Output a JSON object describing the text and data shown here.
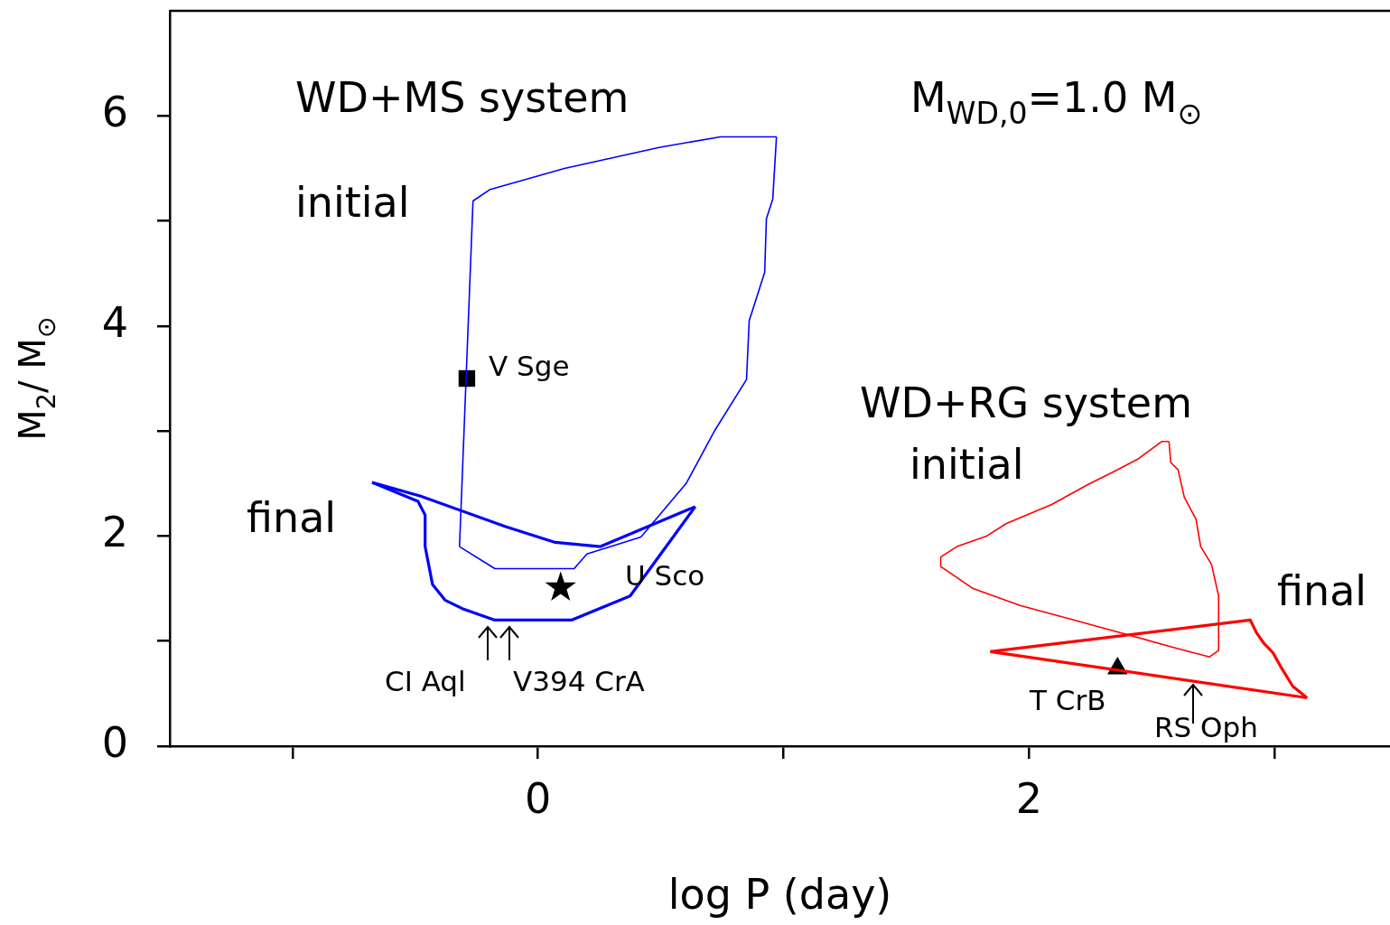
{
  "chart_data": {
    "type": "line",
    "xlabel": "log P (day)",
    "ylabel": "M$_{2}$/ M$_{⊙}$",
    "xlim": [
      -1.5,
      3.47
    ],
    "ylim": [
      0,
      7
    ],
    "xticks": [
      {
        "value": -1,
        "label": null
      },
      0,
      {
        "value": 1,
        "label": null
      },
      2,
      {
        "value": 3,
        "label": null
      }
    ],
    "yticks": [
      0,
      {
        "value": 1,
        "label": null
      },
      2,
      {
        "value": 3,
        "label": null
      },
      4,
      {
        "value": 5,
        "label": null
      },
      6
    ],
    "grid": false,
    "legend": false,
    "marker": "none",
    "line_style": "solid",
    "series": [
      {
        "color": "#0000ff",
        "x": [
          -0.32,
          -0.309,
          -0.265,
          -0.195,
          0.107,
          0.493,
          0.743,
          0.971
        ],
        "values": [
          1.9,
          2.55,
          5.19,
          5.3,
          5.5,
          5.7,
          5.8,
          5.8
        ]
      },
      {
        "color": "#0000ff",
        "x": [
          -0.32,
          -0.176,
          0.147,
          0.199,
          0.419,
          0.603,
          0.721,
          0.849,
          0.86,
          0.923,
          0.93,
          0.956,
          0.971
        ],
        "values": [
          1.9,
          1.69,
          1.69,
          1.83,
          1.99,
          2.5,
          3.01,
          3.49,
          4.05,
          4.51,
          5.02,
          5.21,
          5.8
        ]
      },
      {
        "color": "#0000ff",
        "x": [
          -0.676,
          -0.478,
          -0.132,
          0.07,
          0.254,
          0.64
        ],
        "values": [
          2.51,
          2.38,
          2.09,
          1.94,
          1.9,
          2.28
        ]
      },
      {
        "color": "#0000ff",
        "x": [
          -0.676,
          -0.489,
          -0.46,
          -0.46,
          -0.43,
          -0.379,
          -0.309,
          -0.176,
          0.136,
          0.375,
          0.64
        ],
        "values": [
          2.51,
          2.33,
          2.2,
          1.9,
          1.54,
          1.39,
          1.31,
          1.2,
          1.2,
          1.43,
          2.28
        ]
      },
      {
        "color": "#ff0000",
        "x": [
          1.64,
          1.706,
          1.827,
          1.908,
          2.092,
          2.239,
          2.342,
          2.441,
          2.54,
          2.57
        ],
        "values": [
          1.8,
          1.9,
          2.0,
          2.12,
          2.3,
          2.49,
          2.61,
          2.73,
          2.9,
          2.9
        ]
      },
      {
        "color": "#ff0000",
        "x": [
          2.57,
          2.577,
          2.607,
          2.632,
          2.68,
          2.699,
          2.743,
          2.772,
          2.772
        ],
        "values": [
          2.9,
          2.7,
          2.63,
          2.37,
          2.16,
          1.9,
          1.73,
          1.43,
          0.91
        ]
      },
      {
        "color": "#ff0000",
        "x": [
          1.64,
          1.64,
          1.772,
          1.963,
          2.184,
          2.386,
          2.588,
          2.735,
          2.772
        ],
        "values": [
          1.8,
          1.71,
          1.5,
          1.34,
          1.2,
          1.07,
          0.94,
          0.85,
          0.91
        ]
      },
      {
        "color": "#ff0000",
        "x": [
          1.842,
          2.901,
          2.926,
          2.956,
          2.993,
          3.029,
          3.074,
          3.132
        ],
        "values": [
          0.9,
          1.2,
          1.08,
          0.98,
          0.89,
          0.74,
          0.57,
          0.46
        ]
      },
      {
        "color": "#ff0000",
        "x": [
          1.842,
          3.132
        ],
        "values": [
          0.9,
          0.46
        ]
      },
      {
        "type": "scatter",
        "marker": "square",
        "color": "#000000",
        "x": [
          -0.29
        ],
        "values": [
          3.5
        ]
      },
      {
        "type": "scatter",
        "marker": "star",
        "color": "#000000",
        "x": [
          0.092
        ],
        "values": [
          1.51
        ]
      },
      {
        "type": "scatter",
        "marker": "triangle",
        "color": "#000000",
        "x": [
          2.36
        ],
        "values": [
          0.74
        ]
      }
    ],
    "annotations": [
      "WD+MS system",
      "initial",
      "final",
      "V Sge",
      "U Sco",
      "CI Aql",
      "V394 CrA",
      "M$_{WD,0}$=1.0 M$_{⊙}$",
      "WD+RG system",
      "initial",
      "final",
      "T CrB",
      "RS Oph"
    ]
  }
}
